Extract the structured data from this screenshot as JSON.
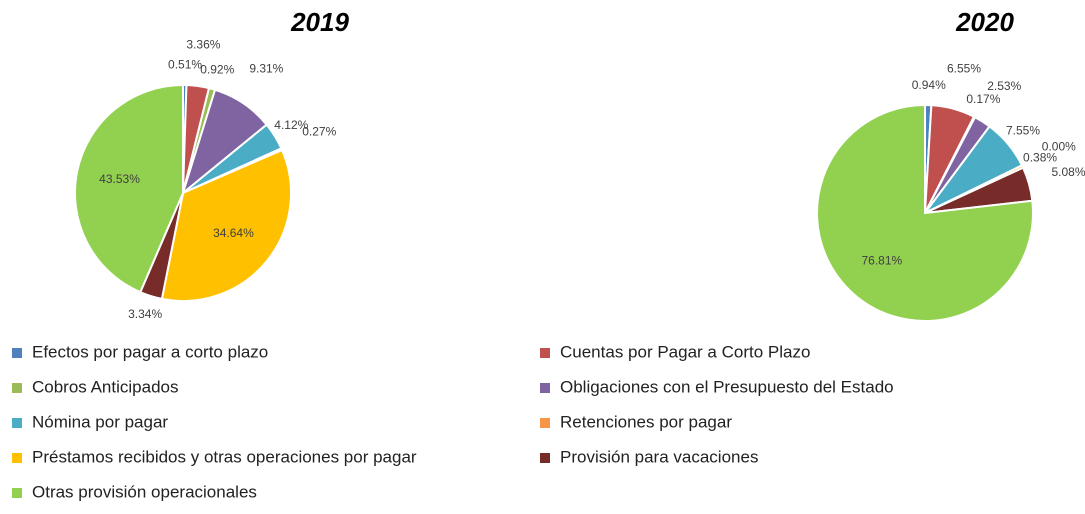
{
  "categories": [
    "Efectos por pagar a corto plazo",
    "Cuentas por Pagar a Corto Plazo",
    "Cobros Anticipados",
    "Obligaciones con el Presupuesto del Estado",
    "Nómina por pagar",
    "Retenciones por pagar",
    "Préstamos recibidos y otras operaciones por pagar",
    "Provisión para vacaciones",
    "Otras provisión operacionales"
  ],
  "colors": [
    "#4f81bd",
    "#c0504d",
    "#9bbb59",
    "#8064a2",
    "#4bacc6",
    "#f79646",
    "#ffc000",
    "#772c2a",
    "#92d050"
  ],
  "chart_data": [
    {
      "type": "pie",
      "title": "2019",
      "values": [
        0.51,
        3.36,
        0.92,
        9.31,
        4.12,
        0.27,
        34.64,
        3.34,
        43.53
      ],
      "value_labels": [
        "0.51%",
        "3.36%",
        "0.92%",
        "9.31%",
        "4.12%",
        "0.27%",
        "34.64%",
        "3.34%",
        "43.53%"
      ]
    },
    {
      "type": "pie",
      "title": "2020",
      "values": [
        0.94,
        6.55,
        0.17,
        2.53,
        7.55,
        0.0,
        0.38,
        5.08,
        76.81
      ],
      "value_labels": [
        "0.94%",
        "6.55%",
        "0.17%",
        "2.53%",
        "7.55%",
        "0.00%",
        "0.38%",
        "5.08%",
        "76.81%"
      ]
    }
  ]
}
